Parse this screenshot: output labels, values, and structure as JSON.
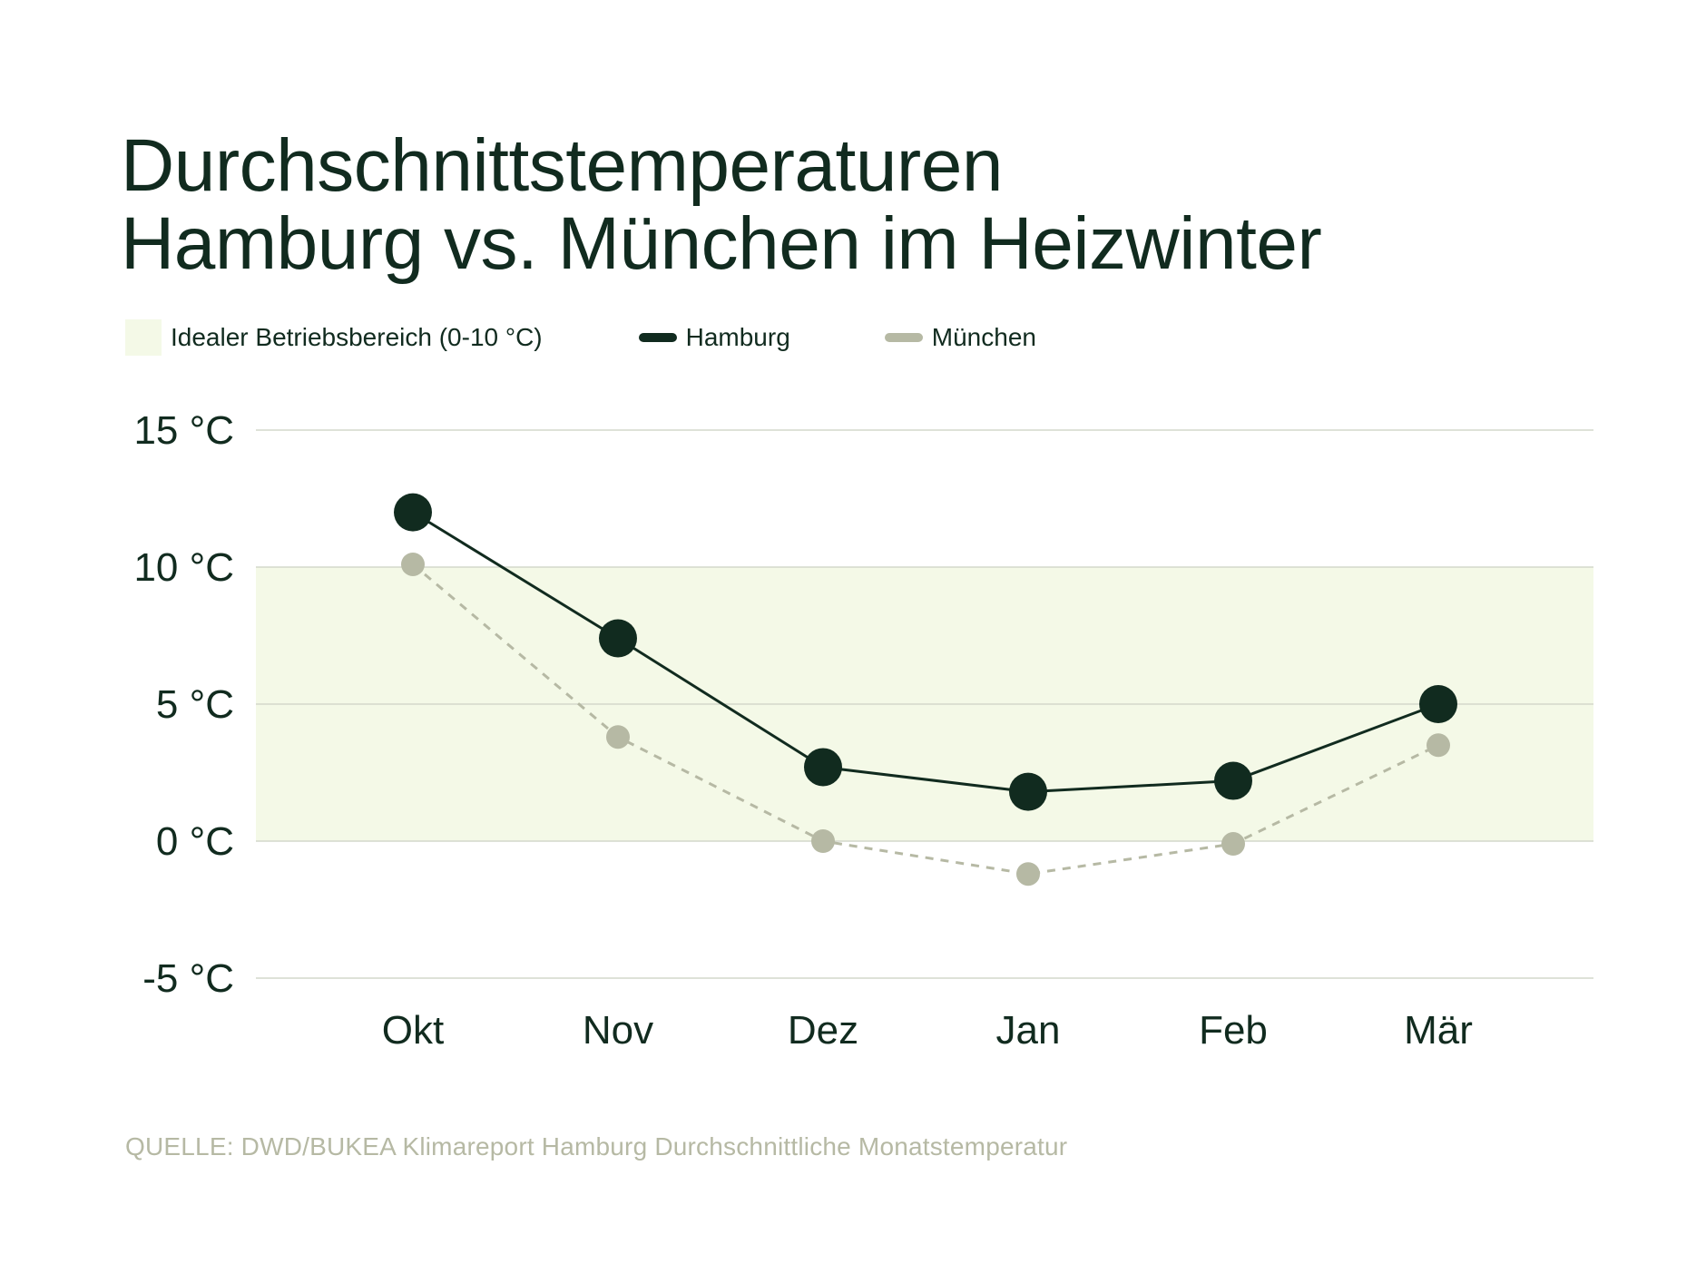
{
  "title": {
    "line1": "Durchschnittstemperaturen",
    "line2": "Hamburg vs. München im Heizwinter"
  },
  "legend": {
    "band_label": "Idealer Betriebsbereich (0-10 °C)",
    "hamburg_label": "Hamburg",
    "muenchen_label": "München"
  },
  "source": "QUELLE: DWD/BUKEA Klimareport Hamburg Durchschnittliche Monatstemperatur",
  "colors": {
    "hamburg": "#112b1f",
    "muenchen": "#b6b9a4",
    "band": "#f4f9e7",
    "grid": "#d4d8cc"
  },
  "chart_data": {
    "type": "line",
    "categories": [
      "Okt",
      "Nov",
      "Dez",
      "Jan",
      "Feb",
      "Mär"
    ],
    "series": [
      {
        "name": "Hamburg",
        "values": [
          12.0,
          7.4,
          2.7,
          1.8,
          2.2,
          5.0
        ],
        "style": "solid"
      },
      {
        "name": "München",
        "values": [
          10.1,
          3.8,
          0.0,
          -1.2,
          -0.1,
          3.5
        ],
        "style": "dashed"
      }
    ],
    "band": {
      "from": 0,
      "to": 10
    },
    "yticks": [
      15,
      10,
      5,
      0,
      -5
    ],
    "ytick_labels": [
      "15 °C",
      "10 °C",
      "5 °C",
      "0 °C",
      "-5 °C"
    ],
    "ylim": [
      -5,
      15
    ],
    "grid": true,
    "legend_position": "top-left"
  }
}
